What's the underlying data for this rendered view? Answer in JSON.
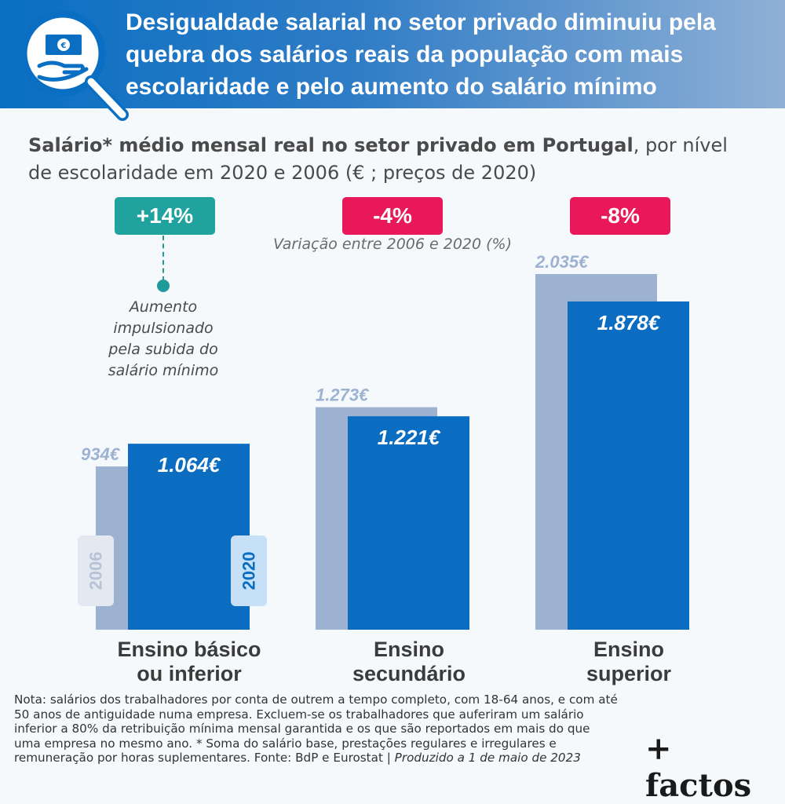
{
  "header": {
    "title": "Desigualdade salarial no setor privado diminuiu pela quebra dos salários reais da população com mais escolaridade e pelo aumento do salário mínimo",
    "icon": "money-hand-magnifier-icon"
  },
  "subtitle": {
    "bold": "Salário* médio mensal real no setor privado em Portugal",
    "rest": ", por nível de escolaridade em 2020 e 2006 (€ ; preços de 2020)"
  },
  "variation_note": "Variação entre 2006 e 2020 (%)",
  "annotation": [
    "Aumento",
    "impulsionado",
    "pela subida do",
    "salário mínimo"
  ],
  "year_tags": {
    "old": "2006",
    "new": "2020"
  },
  "colors": {
    "bar_2006": "#9db2d1",
    "bar_2020": "#0b6dc1",
    "positive": "#20a39e",
    "negative": "#e8185a"
  },
  "chart_data": {
    "type": "bar",
    "categories": [
      "Ensino básico ou inferior",
      "Ensino secundário",
      "Ensino superior"
    ],
    "series": [
      {
        "name": "2006",
        "values": [
          934,
          1273,
          2035
        ],
        "labels": [
          "934€",
          "1.273€",
          "2.035€"
        ]
      },
      {
        "name": "2020",
        "values": [
          1064,
          1221,
          1878
        ],
        "labels": [
          "1.064€",
          "1.221€",
          "1.878€"
        ]
      }
    ],
    "variation": [
      "+14%",
      "-4%",
      "-8%"
    ],
    "variation_values": [
      14,
      -4,
      -8
    ],
    "ylim": [
      0,
      2035
    ],
    "grid": false
  },
  "category_labels": [
    [
      "Ensino básico",
      "ou inferior"
    ],
    [
      "Ensino",
      "secundário"
    ],
    [
      "Ensino",
      "superior"
    ]
  ],
  "note": {
    "text": "Nota: salários dos trabalhadores por conta de outrem a tempo completo, com 18-64 anos, e com até 50 anos de antiguidade numa empresa. Excluem-se os trabalhadores que auferiram um salário inferior a 80% da retribuição mínima mensal garantida e os que são reportados em mais do que uma empresa no mesmo ano. * Soma do salário base, prestações regulares e irregulares e remuneração por horas suplementares. Fonte: BdP e Eurostat | ",
    "italic": "Produzido a 1 de maio de 2023"
  },
  "brand": "+ factos"
}
